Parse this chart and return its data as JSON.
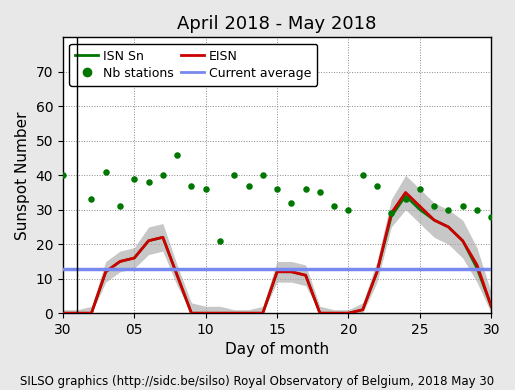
{
  "title": "April 2018 - May 2018",
  "xlabel": "Day of month",
  "ylabel": "Sunspot Number",
  "footer": "SILSO graphics (http://sidc.be/silso) Royal Observatory of Belgium, 2018 May 30",
  "ylim": [
    0,
    80
  ],
  "yticks": [
    0,
    10,
    20,
    30,
    40,
    50,
    60,
    70
  ],
  "xtick_positions": [
    30,
    35,
    40,
    45,
    50,
    55,
    60
  ],
  "xtick_labels": [
    "30",
    "05",
    "10",
    "15",
    "20",
    "25",
    "30"
  ],
  "current_average": 12.8,
  "month_boundary_x": 31,
  "eisn_x": [
    30,
    31,
    32,
    33,
    34,
    35,
    36,
    37,
    38,
    39,
    40,
    41,
    42,
    43,
    44,
    45,
    46,
    47,
    48,
    49,
    50,
    51,
    52,
    53,
    54,
    55,
    56,
    57,
    58,
    59,
    60
  ],
  "eisn_y": [
    0,
    0,
    0,
    12,
    15,
    16,
    21,
    22,
    11,
    0,
    0,
    0,
    0,
    0,
    0,
    12,
    12,
    11,
    0,
    0,
    0,
    1,
    12,
    29,
    35,
    31,
    27,
    25,
    21,
    14,
    2
  ],
  "eisn_upper": [
    1,
    1,
    2,
    15,
    18,
    19,
    25,
    26,
    14,
    3,
    2,
    2,
    1,
    1,
    2,
    15,
    15,
    14,
    2,
    1,
    1,
    3,
    15,
    33,
    40,
    36,
    32,
    30,
    27,
    19,
    6
  ],
  "eisn_lower": [
    0,
    0,
    0,
    9,
    12,
    13,
    17,
    18,
    8,
    0,
    0,
    0,
    0,
    0,
    0,
    9,
    9,
    8,
    0,
    0,
    0,
    0,
    9,
    25,
    30,
    26,
    22,
    20,
    16,
    9,
    0
  ],
  "isn_x": [
    30,
    31,
    32,
    33,
    34,
    35,
    36,
    37,
    38,
    39,
    40,
    41,
    42,
    43,
    44,
    45,
    46,
    47,
    48,
    49,
    50,
    51,
    52,
    53,
    54,
    55,
    56,
    57,
    58,
    59,
    60
  ],
  "isn_y": [
    0,
    0,
    0,
    12,
    15,
    16,
    21,
    22,
    11,
    0,
    0,
    0,
    0,
    0,
    0,
    12,
    12,
    11,
    0,
    0,
    0,
    1,
    12,
    28,
    34,
    30,
    27,
    25,
    21,
    13,
    2
  ],
  "nb_stations_x": [
    30,
    32,
    33,
    34,
    35,
    36,
    37,
    38,
    39,
    40,
    41,
    42,
    43,
    44,
    45,
    46,
    47,
    48,
    49,
    50,
    51,
    52,
    53,
    54,
    55,
    56,
    57,
    58,
    59,
    60
  ],
  "nb_stations_y": [
    40,
    33,
    41,
    31,
    39,
    38,
    40,
    46,
    37,
    36,
    21,
    40,
    37,
    40,
    36,
    32,
    36,
    35,
    31,
    30,
    40,
    37,
    29,
    33,
    36,
    31,
    30,
    31,
    30,
    28
  ],
  "bg_color": "#e8e8e8",
  "plot_bg_color": "#ffffff",
  "eisn_color": "#cc0000",
  "isn_color": "#007700",
  "nb_color": "#007700",
  "avg_color": "#7788ee",
  "shade_color": "#aaaaaa",
  "title_fontsize": 13,
  "label_fontsize": 11,
  "tick_fontsize": 10,
  "footer_fontsize": 8.5,
  "legend_fontsize": 9
}
